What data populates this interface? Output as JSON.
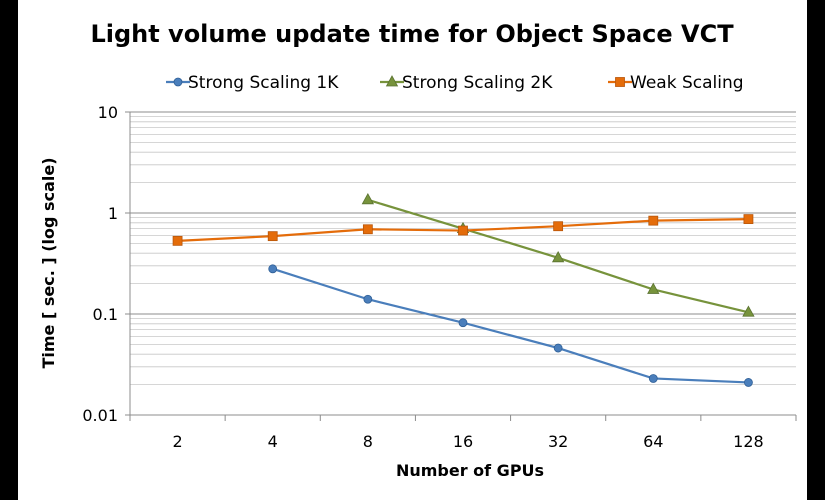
{
  "chart_data": {
    "type": "line",
    "title": "Light volume update time for Object Space VCT",
    "xlabel": "Number of GPUs",
    "ylabel": "Time [ sec. ] (log scale)",
    "y_scale": "log",
    "ylim": [
      0.01,
      10
    ],
    "grid": true,
    "legend_position": "top",
    "categories": [
      "2",
      "4",
      "8",
      "16",
      "32",
      "64",
      "128"
    ],
    "y_ticks": [
      "10",
      "1",
      "0.1",
      "0.01"
    ],
    "series": [
      {
        "name": "Strong Scaling 1K",
        "color": "#4a7ebb",
        "marker": "circle",
        "values": [
          null,
          0.28,
          0.14,
          0.082,
          0.046,
          0.023,
          0.021
        ]
      },
      {
        "name": "Strong Scaling 2K",
        "color": "#77933c",
        "marker": "triangle",
        "values": [
          null,
          null,
          1.35,
          0.7,
          0.36,
          0.175,
          0.104
        ]
      },
      {
        "name": "Weak Scaling",
        "color": "#e46c0a",
        "marker": "square",
        "values": [
          0.53,
          0.59,
          0.69,
          0.67,
          0.74,
          0.84,
          0.87
        ]
      }
    ]
  }
}
